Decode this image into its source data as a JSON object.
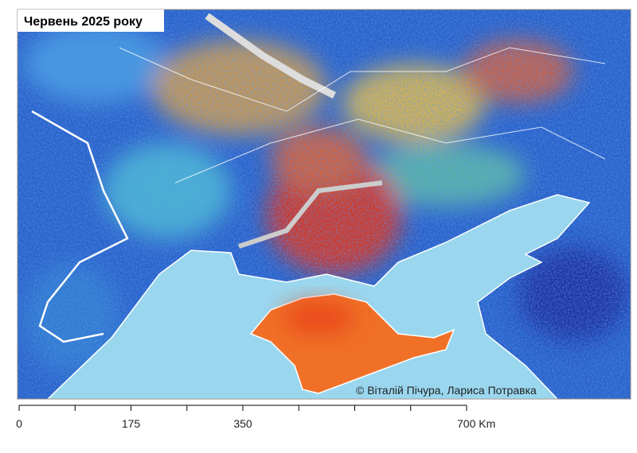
{
  "map": {
    "title": "Червень 2025 року",
    "credit": "© Віталій Пічура, Лариса Потравка",
    "scale_bar": {
      "ticks": [
        0,
        175,
        350,
        {
          "value": 700,
          "label": "700 Km"
        }
      ],
      "max": 700
    }
  }
}
